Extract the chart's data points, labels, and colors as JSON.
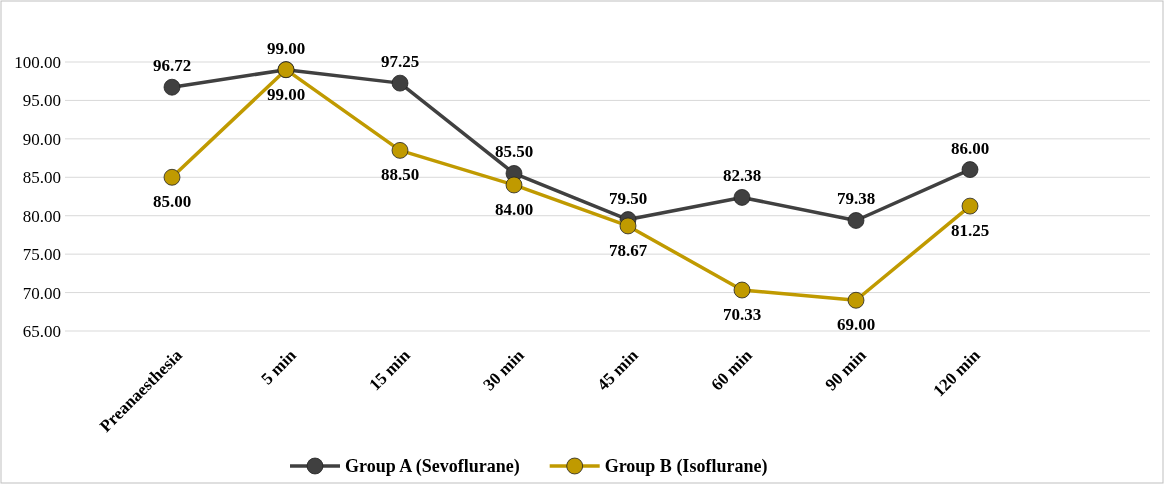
{
  "chart_data": {
    "type": "line",
    "categories": [
      "Preanaesthesia",
      "5 min",
      "15 min",
      "30 min",
      "45 min",
      "60 min",
      "90 min",
      "120 min"
    ],
    "series": [
      {
        "name": "Group A (Sevoflurane)",
        "color": "#404040",
        "values": [
          96.72,
          99.0,
          97.25,
          85.5,
          79.5,
          82.38,
          79.38,
          86.0
        ],
        "value_labels": [
          "96.72",
          "99.00",
          "97.25",
          "85.50",
          "79.50",
          "82.38",
          "79.38",
          "86.00"
        ]
      },
      {
        "name": "Group B (Isoflurane)",
        "color": "#c09a00",
        "values": [
          85.0,
          99.0,
          88.5,
          84.0,
          78.67,
          70.33,
          69.0,
          81.25
        ],
        "value_labels": [
          "85.00",
          "99.00",
          "88.50",
          "84.00",
          "78.67",
          "70.33",
          "69.00",
          "81.25"
        ]
      }
    ],
    "ylim": [
      65,
      100
    ],
    "yticks": [
      {
        "value": 65,
        "label": "65.00"
      },
      {
        "value": 70,
        "label": "70.00"
      },
      {
        "value": 75,
        "label": "75.00"
      },
      {
        "value": 80,
        "label": "80.00"
      },
      {
        "value": 85,
        "label": "85.00"
      },
      {
        "value": 90,
        "label": "90.00"
      },
      {
        "value": 95,
        "label": "95.00"
      },
      {
        "value": 100,
        "label": "100.00"
      }
    ],
    "grid": "y",
    "legend": "bottom",
    "marker": "circle",
    "line_style": "solid"
  }
}
